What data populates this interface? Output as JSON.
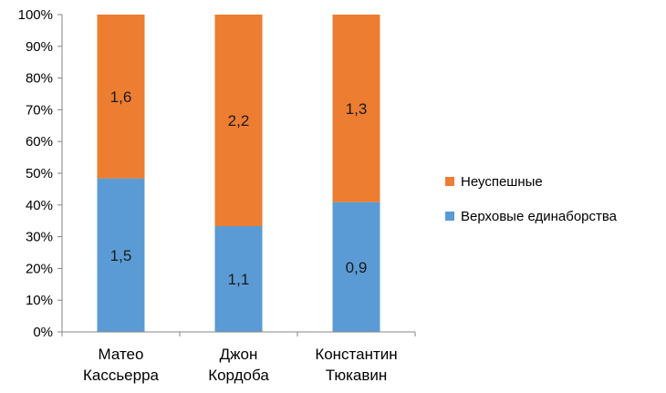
{
  "chart_data": {
    "type": "bar",
    "stacked": true,
    "normalized": true,
    "categories": [
      [
        "Матео",
        "Кассьерра"
      ],
      [
        "Джон",
        "Кордоба"
      ],
      [
        "Константин",
        "Тюкавин"
      ]
    ],
    "series": [
      {
        "name": "Верховые единаборства",
        "color": "#5b9bd5",
        "values": [
          1.5,
          1.1,
          0.9
        ],
        "labels": [
          "1,5",
          "1,1",
          "0,9"
        ]
      },
      {
        "name": "Неуспешные",
        "color": "#ed7d31",
        "values": [
          1.6,
          2.2,
          1.3
        ],
        "labels": [
          "1,6",
          "2,2",
          "1,3"
        ]
      }
    ],
    "yticks": [
      "0%",
      "10%",
      "20%",
      "30%",
      "40%",
      "50%",
      "60%",
      "70%",
      "80%",
      "90%",
      "100%"
    ],
    "ylim": [
      0,
      100
    ],
    "title": "",
    "xlabel": "",
    "ylabel": "",
    "grid": false,
    "legend_position": "right",
    "legend_order": [
      1,
      0
    ]
  }
}
